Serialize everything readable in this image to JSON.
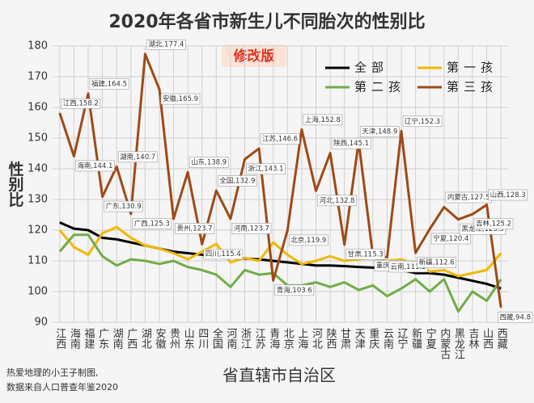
{
  "chart_data": {
    "type": "line",
    "title": "2020年各省市新生儿不同胎次的性别比",
    "stamp": "修改版",
    "y_label": "性别比",
    "x_label": "省直辖市自治区",
    "footer": [
      "热爱地理的小王子制图,",
      "数据来自人口普查年鉴2020"
    ],
    "categories": [
      "江西",
      "海南",
      "福建",
      "广东",
      "湖南",
      "广西",
      "湖北",
      "安徽",
      "贵州",
      "山东",
      "四川",
      "全国",
      "河南",
      "浙江",
      "江苏",
      "青海",
      "北京",
      "上海",
      "河北",
      "陕西",
      "甘肃",
      "天津",
      "重庆",
      "云南",
      "辽宁",
      "新疆",
      "宁夏",
      "内蒙古",
      "黑龙江",
      "吉林",
      "山西",
      "西藏"
    ],
    "ylim": [
      90,
      180
    ],
    "yticks": [
      90,
      100,
      110,
      120,
      130,
      140,
      150,
      160,
      170,
      180
    ],
    "grid": true,
    "legend": "top-right",
    "series": [
      {
        "name": "全部",
        "color": "#000000",
        "values": [
          122.5,
          120.5,
          120,
          117.5,
          117,
          116,
          115,
          114,
          113,
          112.5,
          112,
          111.5,
          111,
          110.8,
          110.5,
          110,
          109.5,
          109,
          108.5,
          108.5,
          108.3,
          108,
          107.8,
          107.5,
          107,
          106,
          106,
          105.5,
          104.5,
          103.5,
          102.5,
          101
        ]
      },
      {
        "name": "第一孩",
        "color": "#f2b800",
        "values": [
          120,
          114.5,
          112,
          119,
          121,
          117.5,
          115,
          114,
          112.5,
          110.5,
          113,
          115.5,
          109.5,
          111,
          110,
          116,
          112,
          109,
          110,
          111.5,
          110,
          110.5,
          111,
          110,
          110.5,
          109,
          106.5,
          107,
          105,
          106,
          107,
          112.5
        ]
      },
      {
        "name": "第二孩",
        "color": "#70ad47",
        "values": [
          113,
          118.5,
          118.5,
          111.5,
          108.5,
          110.5,
          110,
          109,
          110,
          108,
          107,
          105.5,
          101.5,
          107,
          105.5,
          106,
          102,
          102,
          103,
          101.5,
          103,
          100.5,
          102,
          98.5,
          101,
          104,
          100,
          104,
          93.5,
          100,
          97,
          104
        ]
      },
      {
        "name": "第三孩",
        "color": "#9e4a16",
        "values": [
          158.2,
          144.1,
          164.5,
          130.9,
          140.7,
          125.3,
          177.4,
          165.9,
          123.7,
          138.9,
          115.4,
          132.9,
          123.7,
          143.1,
          146.6,
          103.6,
          119.9,
          152.8,
          132.8,
          145.1,
          115.3,
          148.9,
          111.6,
          111.2,
          152.3,
          112.6,
          120.4,
          127.5,
          123.5,
          125.2,
          128.3,
          94.8
        ],
        "value_labels": [
          "江西,158.2",
          "海南,144.1",
          "福建,164.5",
          "广东,130.9",
          "湖南,140.7",
          "广西,125.3",
          "湖北,177.4",
          "安徽,165.9",
          "贵州,123.7",
          "山东,138.9",
          "四川,115.4",
          "全国,132.9",
          "河南,123.7",
          "浙江,143.1",
          "江苏,146.6",
          "青海,103.6",
          "北京,119.9",
          "上海,152.8",
          "河北,132.8",
          "陕西,145.1",
          "甘肃,115.3",
          "天津,148.9",
          "重庆,111.6",
          "云南,111.2",
          "辽宁,152.3",
          "新疆,112.6",
          "宁夏,120.4",
          "内蒙古,127.5",
          "黑龙江,123.5",
          "吉林,125.2",
          "山西,128.3",
          "西藏,94.8"
        ]
      }
    ]
  }
}
